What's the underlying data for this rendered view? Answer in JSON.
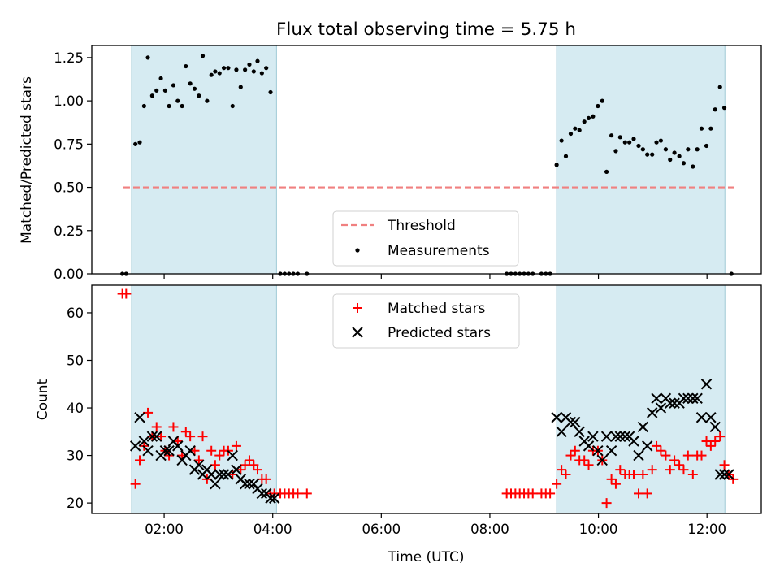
{
  "chart_data": [
    {
      "type": "scatter",
      "title": "Flux total observing time = 5.75 h",
      "xlabel": "",
      "ylabel": "Matched/Predicted stars",
      "xlim": [
        0.6667,
        13.0
      ],
      "ylim": [
        0.0,
        1.32
      ],
      "x_tick_labels": [
        "02:00",
        "04:00",
        "06:00",
        "08:00",
        "10:00",
        "12:00"
      ],
      "x_tick_values": [
        2,
        4,
        6,
        8,
        10,
        12
      ],
      "show_x_tick_labels": false,
      "y_tick_values": [
        0.0,
        0.25,
        0.5,
        0.75,
        1.0,
        1.25
      ],
      "y_tick_labels": [
        "0.00",
        "0.25",
        "0.50",
        "0.75",
        "1.00",
        "1.25"
      ],
      "shaded_intervals": [
        [
          1.4,
          4.07
        ],
        [
          9.23,
          12.33
        ]
      ],
      "threshold": {
        "label": "Threshold",
        "value": 0.5,
        "x_range": [
          1.25,
          12.5
        ],
        "color": "#f08080"
      },
      "legend": {
        "position": "bottom-center",
        "entries": [
          "Threshold",
          "Measurements"
        ]
      },
      "series": [
        {
          "name": "Measurements",
          "marker": "dot",
          "color": "#000000",
          "points": [
            [
              1.23,
              0.0
            ],
            [
              1.3,
              0.0
            ],
            [
              1.47,
              0.75
            ],
            [
              1.55,
              0.76
            ],
            [
              1.63,
              0.97
            ],
            [
              1.7,
              1.25
            ],
            [
              1.78,
              1.03
            ],
            [
              1.86,
              1.06
            ],
            [
              1.94,
              1.13
            ],
            [
              2.02,
              1.06
            ],
            [
              2.09,
              0.97
            ],
            [
              2.17,
              1.09
            ],
            [
              2.25,
              1.0
            ],
            [
              2.33,
              0.97
            ],
            [
              2.4,
              1.2
            ],
            [
              2.48,
              1.1
            ],
            [
              2.56,
              1.07
            ],
            [
              2.64,
              1.03
            ],
            [
              2.71,
              1.26
            ],
            [
              2.79,
              1.0
            ],
            [
              2.87,
              1.15
            ],
            [
              2.94,
              1.17
            ],
            [
              3.02,
              1.16
            ],
            [
              3.1,
              1.19
            ],
            [
              3.18,
              1.19
            ],
            [
              3.26,
              0.97
            ],
            [
              3.33,
              1.18
            ],
            [
              3.41,
              1.08
            ],
            [
              3.49,
              1.18
            ],
            [
              3.57,
              1.21
            ],
            [
              3.65,
              1.17
            ],
            [
              3.72,
              1.23
            ],
            [
              3.8,
              1.16
            ],
            [
              3.88,
              1.19
            ],
            [
              3.96,
              1.05
            ],
            [
              4.14,
              0.0
            ],
            [
              4.22,
              0.0
            ],
            [
              4.3,
              0.0
            ],
            [
              4.38,
              0.0
            ],
            [
              4.46,
              0.0
            ],
            [
              4.63,
              0.0
            ],
            [
              8.31,
              0.0
            ],
            [
              8.39,
              0.0
            ],
            [
              8.47,
              0.0
            ],
            [
              8.55,
              0.0
            ],
            [
              8.63,
              0.0
            ],
            [
              8.71,
              0.0
            ],
            [
              8.79,
              0.0
            ],
            [
              8.95,
              0.0
            ],
            [
              9.03,
              0.0
            ],
            [
              9.11,
              0.0
            ],
            [
              9.23,
              0.63
            ],
            [
              9.32,
              0.77
            ],
            [
              9.4,
              0.68
            ],
            [
              9.49,
              0.81
            ],
            [
              9.57,
              0.84
            ],
            [
              9.65,
              0.83
            ],
            [
              9.74,
              0.88
            ],
            [
              9.82,
              0.9
            ],
            [
              9.9,
              0.91
            ],
            [
              9.99,
              0.97
            ],
            [
              10.07,
              1.0
            ],
            [
              10.15,
              0.59
            ],
            [
              10.24,
              0.8
            ],
            [
              10.32,
              0.71
            ],
            [
              10.4,
              0.79
            ],
            [
              10.49,
              0.76
            ],
            [
              10.57,
              0.76
            ],
            [
              10.65,
              0.78
            ],
            [
              10.74,
              0.74
            ],
            [
              10.82,
              0.72
            ],
            [
              10.9,
              0.69
            ],
            [
              10.99,
              0.69
            ],
            [
              11.07,
              0.76
            ],
            [
              11.15,
              0.77
            ],
            [
              11.24,
              0.72
            ],
            [
              11.32,
              0.66
            ],
            [
              11.4,
              0.7
            ],
            [
              11.49,
              0.68
            ],
            [
              11.57,
              0.64
            ],
            [
              11.65,
              0.72
            ],
            [
              11.74,
              0.62
            ],
            [
              11.82,
              0.72
            ],
            [
              11.9,
              0.84
            ],
            [
              11.99,
              0.74
            ],
            [
              12.07,
              0.84
            ],
            [
              12.15,
              0.95
            ],
            [
              12.24,
              1.08
            ],
            [
              12.32,
              0.96
            ],
            [
              12.45,
              0.0
            ]
          ]
        }
      ]
    },
    {
      "type": "scatter",
      "title": "",
      "xlabel": "Time (UTC)",
      "ylabel": "Count",
      "xlim": [
        0.6667,
        13.0
      ],
      "ylim": [
        17.8,
        65.8
      ],
      "x_tick_labels": [
        "02:00",
        "04:00",
        "06:00",
        "08:00",
        "10:00",
        "12:00"
      ],
      "x_tick_values": [
        2,
        4,
        6,
        8,
        10,
        12
      ],
      "show_x_tick_labels": true,
      "y_tick_values": [
        20,
        30,
        40,
        50,
        60
      ],
      "y_tick_labels": [
        "20",
        "30",
        "40",
        "50",
        "60"
      ],
      "shaded_intervals": [
        [
          1.4,
          4.07
        ],
        [
          9.23,
          12.33
        ]
      ],
      "legend": {
        "position": "top-center",
        "entries": [
          "Matched stars",
          "Predicted stars"
        ]
      },
      "series": [
        {
          "name": "Matched stars",
          "marker": "plus",
          "color": "#ff0000",
          "points": [
            [
              1.23,
              64
            ],
            [
              1.3,
              64
            ],
            [
              1.47,
              24
            ],
            [
              1.55,
              29
            ],
            [
              1.63,
              32
            ],
            [
              1.7,
              39
            ],
            [
              1.78,
              34
            ],
            [
              1.86,
              36
            ],
            [
              1.94,
              34
            ],
            [
              2.02,
              31
            ],
            [
              2.09,
              30
            ],
            [
              2.17,
              36
            ],
            [
              2.25,
              33
            ],
            [
              2.33,
              30
            ],
            [
              2.4,
              35
            ],
            [
              2.48,
              34
            ],
            [
              2.56,
              31
            ],
            [
              2.64,
              29
            ],
            [
              2.71,
              34
            ],
            [
              2.79,
              25
            ],
            [
              2.87,
              31
            ],
            [
              2.94,
              28
            ],
            [
              3.02,
              30
            ],
            [
              3.1,
              31
            ],
            [
              3.18,
              31
            ],
            [
              3.26,
              26
            ],
            [
              3.33,
              32
            ],
            [
              3.41,
              27
            ],
            [
              3.49,
              28
            ],
            [
              3.57,
              29
            ],
            [
              3.65,
              28
            ],
            [
              3.72,
              27
            ],
            [
              3.8,
              25
            ],
            [
              3.88,
              25
            ],
            [
              3.96,
              22
            ],
            [
              4.03,
              22
            ],
            [
              4.14,
              22
            ],
            [
              4.22,
              22
            ],
            [
              4.3,
              22
            ],
            [
              4.38,
              22
            ],
            [
              4.46,
              22
            ],
            [
              4.63,
              22
            ],
            [
              8.31,
              22
            ],
            [
              8.39,
              22
            ],
            [
              8.47,
              22
            ],
            [
              8.55,
              22
            ],
            [
              8.63,
              22
            ],
            [
              8.71,
              22
            ],
            [
              8.79,
              22
            ],
            [
              8.95,
              22
            ],
            [
              9.03,
              22
            ],
            [
              9.11,
              22
            ],
            [
              9.23,
              24
            ],
            [
              9.32,
              27
            ],
            [
              9.4,
              26
            ],
            [
              9.49,
              30
            ],
            [
              9.57,
              31
            ],
            [
              9.65,
              29
            ],
            [
              9.74,
              29
            ],
            [
              9.82,
              28
            ],
            [
              9.9,
              31
            ],
            [
              9.99,
              31
            ],
            [
              10.07,
              29
            ],
            [
              10.15,
              20
            ],
            [
              10.24,
              25
            ],
            [
              10.32,
              24
            ],
            [
              10.4,
              27
            ],
            [
              10.49,
              26
            ],
            [
              10.57,
              26
            ],
            [
              10.65,
              26
            ],
            [
              10.74,
              22
            ],
            [
              10.82,
              26
            ],
            [
              10.9,
              22
            ],
            [
              10.99,
              27
            ],
            [
              11.07,
              32
            ],
            [
              11.15,
              31
            ],
            [
              11.24,
              30
            ],
            [
              11.32,
              27
            ],
            [
              11.4,
              29
            ],
            [
              11.49,
              28
            ],
            [
              11.57,
              27
            ],
            [
              11.65,
              30
            ],
            [
              11.74,
              26
            ],
            [
              11.82,
              30
            ],
            [
              11.9,
              30
            ],
            [
              11.99,
              33
            ],
            [
              12.07,
              32
            ],
            [
              12.15,
              33
            ],
            [
              12.24,
              34
            ],
            [
              12.32,
              28
            ],
            [
              12.4,
              26
            ],
            [
              12.48,
              25
            ]
          ]
        },
        {
          "name": "Predicted stars",
          "marker": "x",
          "color": "#000000",
          "points": [
            [
              1.47,
              32
            ],
            [
              1.55,
              38
            ],
            [
              1.63,
              33
            ],
            [
              1.7,
              31
            ],
            [
              1.78,
              34
            ],
            [
              1.86,
              34
            ],
            [
              1.94,
              30
            ],
            [
              2.02,
              31
            ],
            [
              2.09,
              31
            ],
            [
              2.17,
              33
            ],
            [
              2.25,
              32
            ],
            [
              2.33,
              29
            ],
            [
              2.4,
              30
            ],
            [
              2.48,
              31
            ],
            [
              2.56,
              27
            ],
            [
              2.64,
              28
            ],
            [
              2.71,
              26
            ],
            [
              2.79,
              27
            ],
            [
              2.87,
              26
            ],
            [
              2.94,
              24
            ],
            [
              3.02,
              26
            ],
            [
              3.1,
              26
            ],
            [
              3.18,
              26
            ],
            [
              3.26,
              30
            ],
            [
              3.33,
              27
            ],
            [
              3.41,
              25
            ],
            [
              3.49,
              24
            ],
            [
              3.57,
              24
            ],
            [
              3.65,
              24
            ],
            [
              3.72,
              23
            ],
            [
              3.8,
              22
            ],
            [
              3.88,
              22
            ],
            [
              3.96,
              21
            ],
            [
              4.03,
              21
            ],
            [
              9.23,
              38
            ],
            [
              9.32,
              35
            ],
            [
              9.4,
              38
            ],
            [
              9.49,
              37
            ],
            [
              9.57,
              37
            ],
            [
              9.65,
              35
            ],
            [
              9.74,
              33
            ],
            [
              9.82,
              32
            ],
            [
              9.9,
              34
            ],
            [
              9.99,
              31
            ],
            [
              10.07,
              29
            ],
            [
              10.15,
              34
            ],
            [
              10.24,
              31
            ],
            [
              10.32,
              34
            ],
            [
              10.4,
              34
            ],
            [
              10.49,
              34
            ],
            [
              10.57,
              34
            ],
            [
              10.65,
              33
            ],
            [
              10.74,
              30
            ],
            [
              10.82,
              36
            ],
            [
              10.9,
              32
            ],
            [
              10.99,
              39
            ],
            [
              11.07,
              42
            ],
            [
              11.15,
              40
            ],
            [
              11.24,
              42
            ],
            [
              11.32,
              41
            ],
            [
              11.4,
              41
            ],
            [
              11.49,
              41
            ],
            [
              11.57,
              42
            ],
            [
              11.65,
              42
            ],
            [
              11.74,
              42
            ],
            [
              11.82,
              42
            ],
            [
              11.9,
              38
            ],
            [
              11.99,
              45
            ],
            [
              12.07,
              38
            ],
            [
              12.15,
              36
            ],
            [
              12.24,
              26
            ],
            [
              12.32,
              26
            ],
            [
              12.4,
              26
            ]
          ]
        }
      ]
    }
  ]
}
